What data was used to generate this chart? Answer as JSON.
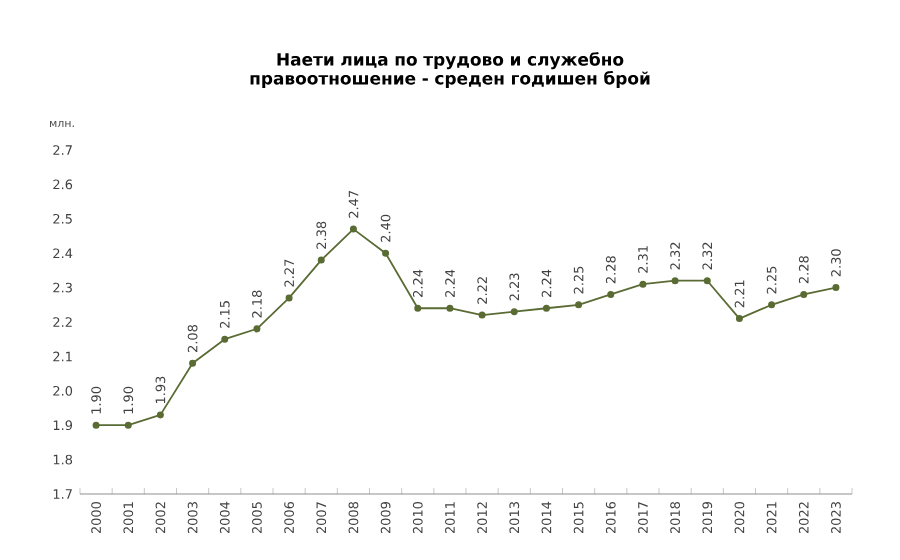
{
  "chart_data": {
    "type": "line",
    "title": "Наети лица по трудово и служебно правоотношение - среден годишен брой",
    "ylabel": "млн.",
    "categories": [
      "2000",
      "2001",
      "2002",
      "2003",
      "2004",
      "2005",
      "2006",
      "2007",
      "2008",
      "2009",
      "2010",
      "2011",
      "2012",
      "2013",
      "2014",
      "2015",
      "2016",
      "2017",
      "2018",
      "2019",
      "2020",
      "2021",
      "2022",
      "2023"
    ],
    "values": [
      1.9,
      1.9,
      1.93,
      2.08,
      2.15,
      2.18,
      2.27,
      2.38,
      2.47,
      2.4,
      2.24,
      2.24,
      2.22,
      2.23,
      2.24,
      2.25,
      2.28,
      2.31,
      2.32,
      2.32,
      2.21,
      2.25,
      2.28,
      2.3
    ],
    "value_labels": [
      "1.90",
      "1.90",
      "1.93",
      "2.08",
      "2.15",
      "2.18",
      "2.27",
      "2.38",
      "2.47",
      "2.40",
      "2.24",
      "2.24",
      "2.22",
      "2.23",
      "2.24",
      "2.25",
      "2.28",
      "2.31",
      "2.32",
      "2.32",
      "2.21",
      "2.25",
      "2.28",
      "2.30"
    ],
    "color": "#5a6b34",
    "marker": "circle",
    "line_style": "solid",
    "ylim": [
      1.7,
      2.7
    ],
    "yticks": [
      1.7,
      1.8,
      1.9,
      {
        "value": 2.0,
        "label": "2.0"
      },
      2.1,
      2.2,
      2.3,
      2.4,
      2.5,
      2.6,
      2.7
    ]
  }
}
